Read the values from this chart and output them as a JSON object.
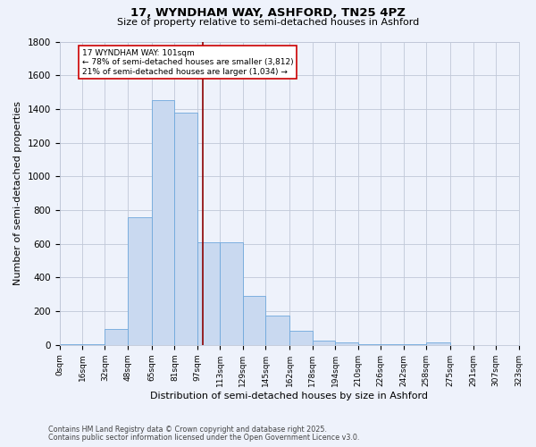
{
  "title1": "17, WYNDHAM WAY, ASHFORD, TN25 4PZ",
  "title2": "Size of property relative to semi-detached houses in Ashford",
  "xlabel": "Distribution of semi-detached houses by size in Ashford",
  "ylabel": "Number of semi-detached properties",
  "footnote1": "Contains HM Land Registry data © Crown copyright and database right 2025.",
  "footnote2": "Contains public sector information licensed under the Open Government Licence v3.0.",
  "bar_edges": [
    0,
    16,
    32,
    48,
    65,
    81,
    97,
    113,
    129,
    145,
    162,
    178,
    194,
    210,
    226,
    242,
    258,
    275,
    291,
    307,
    323
  ],
  "bar_heights": [
    5,
    5,
    95,
    760,
    1450,
    1380,
    610,
    610,
    290,
    175,
    85,
    28,
    15,
    5,
    5,
    5,
    15,
    0,
    0,
    0
  ],
  "bar_color": "#c9d9f0",
  "bar_edge_color": "#6fa8dc",
  "property_value": 101,
  "vline_color": "#8b0000",
  "annotation_line1": "17 WYNDHAM WAY: 101sqm",
  "annotation_line2": "← 78% of semi-detached houses are smaller (3,812)",
  "annotation_line3": "21% of semi-detached houses are larger (1,034) →",
  "annotation_box_color": "#ffffff",
  "annotation_box_edge_color": "#cc0000",
  "ylim": [
    0,
    1800
  ],
  "yticks": [
    0,
    200,
    400,
    600,
    800,
    1000,
    1200,
    1400,
    1600,
    1800
  ],
  "tick_labels": [
    "0sqm",
    "16sqm",
    "32sqm",
    "48sqm",
    "65sqm",
    "81sqm",
    "97sqm",
    "113sqm",
    "129sqm",
    "145sqm",
    "162sqm",
    "178sqm",
    "194sqm",
    "210sqm",
    "226sqm",
    "242sqm",
    "258sqm",
    "275sqm",
    "291sqm",
    "307sqm",
    "323sqm"
  ],
  "bg_color": "#eef2fb",
  "plot_bg_color": "#eef2fb",
  "grid_color": "#c0c8d8",
  "xlim": [
    0,
    323
  ]
}
